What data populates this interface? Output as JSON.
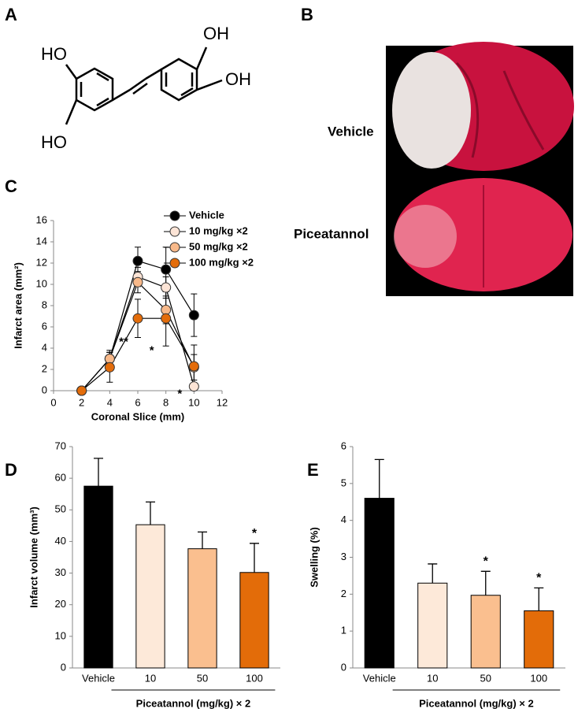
{
  "structure": {
    "panel": "A",
    "labels": [
      "HO",
      "HO",
      "OH",
      "OH"
    ]
  },
  "images": {
    "panel": "B",
    "labels": [
      "Vehicle",
      "Piceatannol"
    ]
  },
  "chart_data": [
    {
      "type": "line",
      "panel": "C",
      "x_label": "Coronal Slice (mm)",
      "y_label": "Infarct area (mm²)",
      "x": [
        2,
        4,
        6,
        8,
        10
      ],
      "xlim": [
        0,
        12
      ],
      "xticks": [
        0,
        2,
        4,
        6,
        8,
        10,
        12
      ],
      "ylim": [
        0,
        16
      ],
      "yticks": [
        0,
        2,
        4,
        6,
        8,
        10,
        12,
        14,
        16
      ],
      "legend": "top-right",
      "series": [
        {
          "name": "Vehicle",
          "color": "#000000",
          "values": [
            0,
            3.0,
            12.2,
            11.4,
            7.1
          ],
          "errors": [
            0,
            0.8,
            1.3,
            2.1,
            2.0
          ],
          "significance": [
            null,
            null,
            null,
            null,
            null
          ]
        },
        {
          "name": "10 mg/kg ×2",
          "color": "#fce4d6",
          "values": [
            0,
            3.0,
            10.7,
            9.7,
            0.4
          ],
          "errors": [
            0,
            0.6,
            0.9,
            1.0,
            0.3
          ],
          "significance": [
            null,
            null,
            null,
            null,
            "*"
          ]
        },
        {
          "name": "50 mg/kg ×2",
          "color": "#f8b98a",
          "values": [
            0,
            3.0,
            10.2,
            7.6,
            2.2
          ],
          "errors": [
            0,
            0.6,
            1.0,
            1.3,
            1.2
          ],
          "significance": [
            null,
            null,
            null,
            null,
            null
          ]
        },
        {
          "name": "100 mg/kg ×2",
          "color": "#e36c0a",
          "values": [
            0,
            2.2,
            6.8,
            6.8,
            2.3
          ],
          "errors": [
            0,
            1.4,
            1.8,
            2.6,
            2.0
          ],
          "significance": [
            null,
            null,
            "**",
            "*",
            null
          ]
        }
      ]
    },
    {
      "type": "bar",
      "panel": "D",
      "y_label": "Infarct volume (mm³)",
      "x_label": "Piceatannol (mg/kg) × 2",
      "categories": [
        "Vehicle",
        "10",
        "50",
        "100"
      ],
      "values": [
        57.5,
        45.3,
        37.7,
        30.2
      ],
      "errors": [
        8.8,
        7.2,
        5.3,
        9.2
      ],
      "colors": [
        "#000000",
        "#fde9d9",
        "#fabf8f",
        "#e36c09"
      ],
      "significance": [
        null,
        null,
        null,
        "*"
      ],
      "ylim": [
        0,
        70
      ],
      "yticks": [
        0,
        10,
        20,
        30,
        40,
        50,
        60,
        70
      ]
    },
    {
      "type": "bar",
      "panel": "E",
      "y_label": "Swelling (%)",
      "x_label": "Piceatannol (mg/kg) × 2",
      "categories": [
        "Vehicle",
        "10",
        "50",
        "100"
      ],
      "values": [
        4.6,
        2.3,
        1.97,
        1.55
      ],
      "errors": [
        1.05,
        0.52,
        0.65,
        0.62
      ],
      "colors": [
        "#000000",
        "#fde9d9",
        "#fabf8f",
        "#e36c09"
      ],
      "significance": [
        null,
        null,
        "*",
        "*"
      ],
      "ylim": [
        0,
        6
      ],
      "yticks": [
        0,
        1,
        2,
        3,
        4,
        5,
        6
      ]
    }
  ]
}
